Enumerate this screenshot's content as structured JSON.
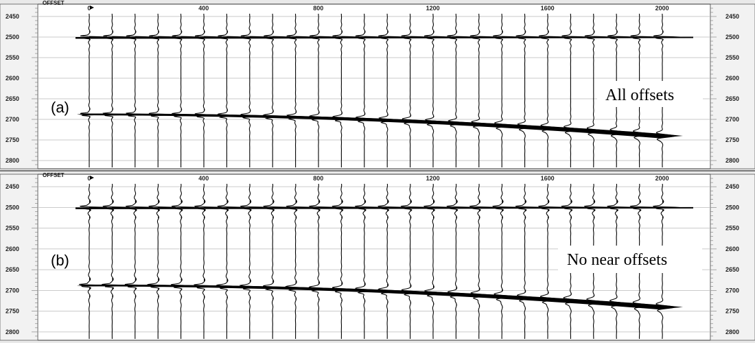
{
  "panels": [
    {
      "id": "a",
      "letter": "(a)",
      "caption": "All offsets",
      "offset_title": "OFFSET",
      "offset_tick_labels": [
        "0",
        "400",
        "800",
        "1200",
        "1600",
        "2000"
      ],
      "time_tick_labels": [
        "2450",
        "2500",
        "2550",
        "2600",
        "2650",
        "2700",
        "2750",
        "2800"
      ]
    },
    {
      "id": "b",
      "letter": "(b)",
      "caption": "No near offsets",
      "offset_title": "OFFSET",
      "offset_tick_labels": [
        "0",
        "400",
        "800",
        "1200",
        "1600",
        "2000"
      ],
      "time_tick_labels": [
        "2450",
        "2500",
        "2550",
        "2600",
        "2650",
        "2700",
        "2750",
        "2800"
      ]
    }
  ],
  "gather": {
    "offsets": [
      0,
      80,
      160,
      240,
      320,
      400,
      480,
      560,
      640,
      720,
      800,
      880,
      960,
      1040,
      1120,
      1200,
      1280,
      1360,
      1440,
      1520,
      1600,
      1680,
      1760,
      1840,
      1920,
      2000
    ],
    "offset_range": [
      0,
      2000
    ],
    "time_range": [
      2420,
      2820
    ],
    "flat_event_time": 2500,
    "moveout_event": {
      "t0": 2688,
      "t_far": 2740
    },
    "near_offset_distortion": {
      "a": 1.0,
      "b": 0.35
    }
  }
}
